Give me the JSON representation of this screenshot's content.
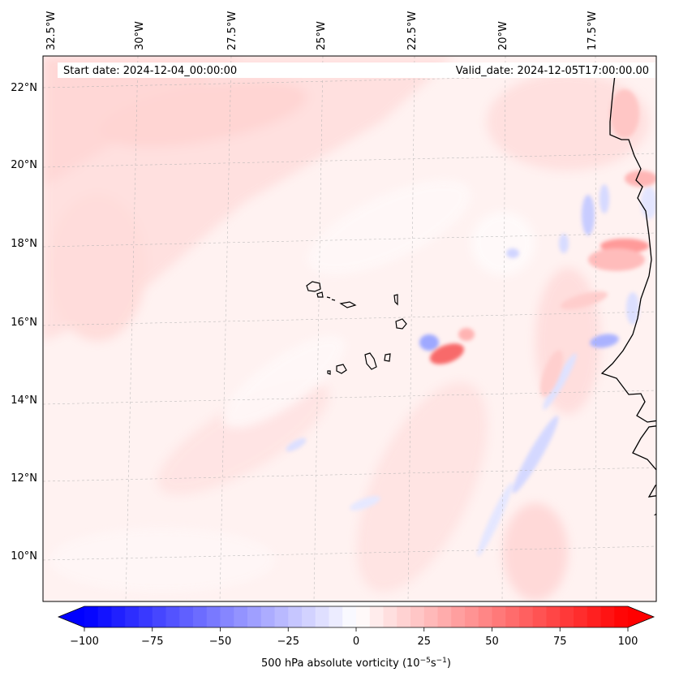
{
  "map": {
    "start_date": "Start date: 2024-12-04_00:00:00",
    "valid_date": "Valid_date: 2024-12-05T17:00:00.00",
    "lon_labels": [
      "32.5°W",
      "30°W",
      "27.5°W",
      "25°W",
      "22.5°W",
      "20°W",
      "17.5°W"
    ],
    "lat_labels": [
      "22°N",
      "20°N",
      "18°N",
      "16°N",
      "14°N",
      "12°N",
      "10°N"
    ],
    "coastline_color": "#000000",
    "gridline_color": "#b0b0b0"
  },
  "colorbar": {
    "ticks": [
      "−100",
      "−75",
      "−50",
      "−25",
      "0",
      "25",
      "50",
      "75",
      "100"
    ],
    "label_main": "500 hPa absolute vorticity (10",
    "label_exp1": "−5",
    "label_mid": "s",
    "label_exp2": "−1",
    "label_end": ")",
    "min": -100,
    "max": 100,
    "step": 5,
    "negative_color": "#0000ff",
    "positive_color": "#ff0000"
  }
}
